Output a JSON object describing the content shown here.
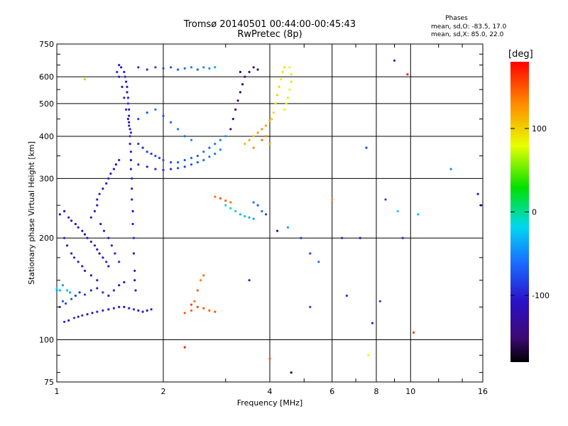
{
  "header": {
    "title_line1": "Tromsø 20140501 00:44:00-00:45:43",
    "title_line2": "RwPretec (8p)",
    "phases_heading": "Phases",
    "phase_o_label": "mean, sd,O: -83.5, 17.0",
    "phase_x_label": "mean, sd,X:  85.0, 22.0"
  },
  "colorbar": {
    "unit_label": "[deg]",
    "range": [
      -180,
      180
    ],
    "tick_labels": [
      "100",
      "0",
      "-100"
    ],
    "tick_values": [
      100,
      0,
      -100
    ]
  },
  "chart_data": {
    "type": "scatter",
    "xlabel": "Frequency [MHz]",
    "ylabel": "Stationary phase Virtual Height [km]",
    "xscale": "log",
    "yscale": "log",
    "xlim": [
      1,
      16
    ],
    "ylim": [
      75,
      750
    ],
    "grid": true,
    "x_ticks": [
      {
        "value": 1,
        "label": "1"
      },
      {
        "value": 2,
        "label": "2"
      },
      {
        "value": 4,
        "label": "4"
      },
      {
        "value": 6,
        "label": "6"
      },
      {
        "value": 8,
        "label": "8"
      },
      {
        "value": 10,
        "label": "10"
      },
      {
        "value": 16,
        "label": "16"
      }
    ],
    "y_ticks": [
      {
        "value": 75,
        "label": "75"
      },
      {
        "value": 100,
        "label": "100"
      },
      {
        "value": 200,
        "label": "200"
      },
      {
        "value": 300,
        "label": "300"
      },
      {
        "value": 400,
        "label": "400"
      },
      {
        "value": 500,
        "label": "500"
      },
      {
        "value": 600,
        "label": "600"
      },
      {
        "value": 750,
        "label": "750"
      }
    ],
    "x_minor_ticks": [
      3,
      5,
      7,
      9,
      12,
      14
    ],
    "y_minor_ticks": [
      80,
      90,
      125,
      150,
      175,
      250,
      350,
      450,
      550,
      650,
      700
    ],
    "points": [
      [
        1.05,
        113,
        -95
      ],
      [
        1.08,
        114,
        -100
      ],
      [
        1.12,
        116,
        -90
      ],
      [
        1.15,
        117,
        -105
      ],
      [
        1.18,
        118,
        -95
      ],
      [
        1.22,
        119,
        -100
      ],
      [
        1.26,
        120,
        -110
      ],
      [
        1.3,
        121,
        -95
      ],
      [
        1.35,
        122,
        -100
      ],
      [
        1.4,
        123,
        -105
      ],
      [
        1.45,
        124,
        -95
      ],
      [
        1.5,
        125,
        -100
      ],
      [
        1.55,
        125,
        -110
      ],
      [
        1.6,
        124,
        -100
      ],
      [
        1.65,
        123,
        -95
      ],
      [
        1.7,
        122,
        -105
      ],
      [
        1.75,
        121,
        -100
      ],
      [
        1.8,
        122,
        -110
      ],
      [
        1.85,
        123,
        -100
      ],
      [
        1.02,
        125,
        -70
      ],
      [
        1.04,
        130,
        -75
      ],
      [
        1.06,
        128,
        -80
      ],
      [
        1.1,
        132,
        -70
      ],
      [
        1.13,
        135,
        -85
      ],
      [
        1.16,
        138,
        -90
      ],
      [
        1.2,
        136,
        -80
      ],
      [
        1.25,
        140,
        -95
      ],
      [
        1.3,
        142,
        -100
      ],
      [
        1.35,
        138,
        -90
      ],
      [
        1.4,
        135,
        -100
      ],
      [
        1.45,
        140,
        -95
      ],
      [
        1.5,
        145,
        -100
      ],
      [
        1.55,
        148,
        -105
      ],
      [
        1.0,
        142,
        -20
      ],
      [
        1.02,
        140,
        -30
      ],
      [
        1.04,
        145,
        -40
      ],
      [
        1.07,
        140,
        -25
      ],
      [
        1.09,
        138,
        -35
      ],
      [
        1.02,
        235,
        -105
      ],
      [
        1.05,
        240,
        -110
      ],
      [
        1.08,
        230,
        -100
      ],
      [
        1.1,
        225,
        -120
      ],
      [
        1.13,
        220,
        -110
      ],
      [
        1.15,
        215,
        -115
      ],
      [
        1.18,
        210,
        -105
      ],
      [
        1.2,
        205,
        -120
      ],
      [
        1.22,
        200,
        -110
      ],
      [
        1.25,
        195,
        -100
      ],
      [
        1.28,
        190,
        -105
      ],
      [
        1.3,
        185,
        -110
      ],
      [
        1.32,
        180,
        -120
      ],
      [
        1.35,
        175,
        -110
      ],
      [
        1.38,
        170,
        -100
      ],
      [
        1.4,
        165,
        -105
      ],
      [
        1.05,
        200,
        -100
      ],
      [
        1.07,
        190,
        -110
      ],
      [
        1.1,
        180,
        -105
      ],
      [
        1.12,
        175,
        -100
      ],
      [
        1.15,
        170,
        -110
      ],
      [
        1.18,
        165,
        -100
      ],
      [
        1.2,
        160,
        -105
      ],
      [
        1.25,
        155,
        -110
      ],
      [
        1.3,
        150,
        -100
      ],
      [
        1.3,
        260,
        -95
      ],
      [
        1.32,
        270,
        -100
      ],
      [
        1.35,
        280,
        -110
      ],
      [
        1.38,
        290,
        -105
      ],
      [
        1.4,
        300,
        -95
      ],
      [
        1.42,
        310,
        -100
      ],
      [
        1.45,
        320,
        -105
      ],
      [
        1.47,
        330,
        -110
      ],
      [
        1.5,
        340,
        -100
      ],
      [
        1.25,
        230,
        -110
      ],
      [
        1.28,
        240,
        -100
      ],
      [
        1.3,
        250,
        -105
      ],
      [
        1.33,
        220,
        -115
      ],
      [
        1.36,
        210,
        -100
      ],
      [
        1.4,
        200,
        -110
      ],
      [
        1.43,
        190,
        -105
      ],
      [
        1.46,
        180,
        -100
      ],
      [
        1.5,
        170,
        -95
      ],
      [
        1.5,
        650,
        -100
      ],
      [
        1.52,
        640,
        -110
      ],
      [
        1.55,
        620,
        -100
      ],
      [
        1.56,
        600,
        -95
      ],
      [
        1.57,
        580,
        -105
      ],
      [
        1.58,
        560,
        -100
      ],
      [
        1.58,
        540,
        -110
      ],
      [
        1.59,
        520,
        -100
      ],
      [
        1.59,
        500,
        -95
      ],
      [
        1.6,
        480,
        -105
      ],
      [
        1.6,
        460,
        -100
      ],
      [
        1.6,
        440,
        -110
      ],
      [
        1.61,
        420,
        -100
      ],
      [
        1.61,
        400,
        -95
      ],
      [
        1.61,
        380,
        -105
      ],
      [
        1.62,
        360,
        -100
      ],
      [
        1.62,
        340,
        -110
      ],
      [
        1.62,
        320,
        -100
      ],
      [
        1.63,
        300,
        -95
      ],
      [
        1.63,
        280,
        -105
      ],
      [
        1.63,
        260,
        -100
      ],
      [
        1.64,
        240,
        -110
      ],
      [
        1.64,
        220,
        -100
      ],
      [
        1.65,
        200,
        -95
      ],
      [
        1.65,
        180,
        -105
      ],
      [
        1.66,
        160,
        -100
      ],
      [
        1.66,
        150,
        -110
      ],
      [
        1.67,
        140,
        -100
      ],
      [
        1.48,
        620,
        -95
      ],
      [
        1.5,
        600,
        -100
      ],
      [
        1.53,
        560,
        -105
      ],
      [
        1.55,
        520,
        -95
      ],
      [
        1.57,
        480,
        -100
      ],
      [
        1.59,
        450,
        -105
      ],
      [
        1.6,
        430,
        -95
      ],
      [
        1.62,
        410,
        -100
      ],
      [
        1.7,
        380,
        -90
      ],
      [
        1.75,
        370,
        -95
      ],
      [
        1.8,
        360,
        -85
      ],
      [
        1.85,
        355,
        -90
      ],
      [
        1.9,
        350,
        -80
      ],
      [
        1.95,
        345,
        -85
      ],
      [
        2.0,
        340,
        -75
      ],
      [
        2.1,
        335,
        -80
      ],
      [
        2.2,
        335,
        -70
      ],
      [
        2.3,
        340,
        -75
      ],
      [
        2.4,
        345,
        -65
      ],
      [
        2.5,
        350,
        -70
      ],
      [
        2.6,
        360,
        -60
      ],
      [
        2.7,
        370,
        -65
      ],
      [
        2.8,
        380,
        -55
      ],
      [
        2.9,
        390,
        -50
      ],
      [
        3.0,
        400,
        -45
      ],
      [
        1.7,
        330,
        -95
      ],
      [
        1.8,
        325,
        -100
      ],
      [
        1.9,
        320,
        -95
      ],
      [
        2.0,
        318,
        -90
      ],
      [
        2.1,
        320,
        -95
      ],
      [
        2.2,
        322,
        -85
      ],
      [
        2.3,
        325,
        -80
      ],
      [
        2.4,
        330,
        -75
      ],
      [
        2.5,
        335,
        -70
      ],
      [
        2.6,
        340,
        -65
      ],
      [
        2.7,
        348,
        -60
      ],
      [
        2.8,
        355,
        -55
      ],
      [
        2.9,
        365,
        -50
      ],
      [
        1.7,
        450,
        -80
      ],
      [
        1.8,
        470,
        -70
      ],
      [
        1.9,
        480,
        -60
      ],
      [
        2.0,
        460,
        -75
      ],
      [
        2.1,
        440,
        -65
      ],
      [
        2.2,
        420,
        -55
      ],
      [
        2.3,
        400,
        -60
      ],
      [
        2.4,
        390,
        -50
      ],
      [
        1.7,
        640,
        -95
      ],
      [
        1.8,
        630,
        -90
      ],
      [
        1.9,
        640,
        -85
      ],
      [
        2.0,
        635,
        -80
      ],
      [
        2.1,
        640,
        -75
      ],
      [
        2.2,
        630,
        -70
      ],
      [
        2.3,
        635,
        -60
      ],
      [
        2.4,
        640,
        -55
      ],
      [
        2.5,
        630,
        -65
      ],
      [
        2.6,
        640,
        -50
      ],
      [
        2.7,
        635,
        -45
      ],
      [
        2.8,
        640,
        -40
      ],
      [
        3.1,
        420,
        -150
      ],
      [
        3.15,
        450,
        -140
      ],
      [
        3.2,
        480,
        -155
      ],
      [
        3.25,
        510,
        -145
      ],
      [
        3.3,
        540,
        -150
      ],
      [
        3.35,
        570,
        -160
      ],
      [
        3.4,
        600,
        -145
      ],
      [
        3.5,
        620,
        -150
      ],
      [
        3.6,
        640,
        -155
      ],
      [
        3.7,
        630,
        -150
      ],
      [
        3.3,
        620,
        -155
      ],
      [
        3.4,
        380,
        110
      ],
      [
        3.5,
        390,
        120
      ],
      [
        3.6,
        400,
        115
      ],
      [
        3.7,
        410,
        125
      ],
      [
        3.8,
        420,
        130
      ],
      [
        3.9,
        430,
        120
      ],
      [
        4.0,
        445,
        115
      ],
      [
        3.8,
        390,
        140
      ],
      [
        3.9,
        400,
        135
      ],
      [
        4.0,
        380,
        120
      ],
      [
        3.6,
        370,
        130
      ],
      [
        4.1,
        470,
        95
      ],
      [
        4.15,
        500,
        90
      ],
      [
        4.2,
        530,
        100
      ],
      [
        4.25,
        560,
        95
      ],
      [
        4.3,
        590,
        85
      ],
      [
        4.35,
        620,
        90
      ],
      [
        4.4,
        640,
        95
      ],
      [
        4.05,
        450,
        100
      ],
      [
        4.4,
        480,
        80
      ],
      [
        4.45,
        500,
        85
      ],
      [
        4.5,
        520,
        75
      ],
      [
        4.55,
        550,
        80
      ],
      [
        4.6,
        580,
        70
      ],
      [
        4.6,
        610,
        85
      ],
      [
        4.55,
        640,
        80
      ],
      [
        2.3,
        120,
        150
      ],
      [
        2.4,
        122,
        145
      ],
      [
        2.5,
        125,
        155
      ],
      [
        2.6,
        124,
        150
      ],
      [
        2.7,
        122,
        145
      ],
      [
        2.8,
        121,
        150
      ],
      [
        2.45,
        130,
        140
      ],
      [
        2.5,
        140,
        145
      ],
      [
        2.55,
        150,
        135
      ],
      [
        2.6,
        155,
        140
      ],
      [
        2.4,
        127,
        155
      ],
      [
        3.0,
        250,
        -20
      ],
      [
        3.1,
        245,
        -10
      ],
      [
        3.2,
        240,
        -15
      ],
      [
        3.3,
        235,
        -30
      ],
      [
        3.4,
        232,
        -25
      ],
      [
        3.5,
        230,
        -35
      ],
      [
        3.6,
        228,
        -40
      ],
      [
        2.8,
        265,
        140
      ],
      [
        2.9,
        262,
        150
      ],
      [
        3.0,
        258,
        145
      ],
      [
        3.1,
        255,
        140
      ],
      [
        3.6,
        255,
        -60
      ],
      [
        3.7,
        250,
        -70
      ],
      [
        3.8,
        240,
        -60
      ],
      [
        3.9,
        235,
        -80
      ],
      [
        4.9,
        200,
        -90
      ],
      [
        5.2,
        180,
        -80
      ],
      [
        5.5,
        170,
        -60
      ],
      [
        6.0,
        260,
        130
      ],
      [
        6.4,
        200,
        -100
      ],
      [
        6.6,
        135,
        -90
      ],
      [
        7.2,
        200,
        -110
      ],
      [
        7.5,
        370,
        -80
      ],
      [
        8.2,
        130,
        -85
      ],
      [
        8.5,
        260,
        -80
      ],
      [
        9.2,
        240,
        -20
      ],
      [
        9.5,
        200,
        -100
      ],
      [
        10.5,
        235,
        -30
      ],
      [
        13.0,
        320,
        -50
      ],
      [
        15.5,
        270,
        -110
      ],
      [
        15.8,
        250,
        -100
      ],
      [
        9.8,
        610,
        170
      ],
      [
        9.0,
        670,
        -100
      ],
      [
        10.2,
        105,
        160
      ],
      [
        7.8,
        112,
        -95
      ],
      [
        7.6,
        90,
        80
      ],
      [
        4.6,
        80,
        -160
      ],
      [
        4.0,
        88,
        150
      ],
      [
        2.3,
        95,
        170
      ],
      [
        1.0,
        140,
        -40
      ],
      [
        3.5,
        150,
        -100
      ],
      [
        5.2,
        125,
        -80
      ],
      [
        4.2,
        210,
        -120
      ],
      [
        4.5,
        215,
        -40
      ],
      [
        1.2,
        590,
        60
      ]
    ]
  }
}
